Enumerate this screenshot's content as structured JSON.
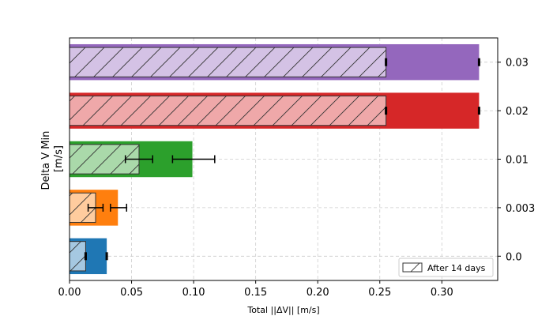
{
  "chart_data": {
    "type": "bar",
    "orientation": "horizontal",
    "title": "",
    "xlabel": "Total ||ΔV|| [m/s]",
    "ylabel_lines": [
      "Delta V Min",
      "[m/s]"
    ],
    "y_axis_side": "right",
    "xlim": [
      0,
      0.345
    ],
    "x_ticks": [
      0.0,
      0.05,
      0.1,
      0.15,
      0.2,
      0.25,
      0.3
    ],
    "x_tick_labels": [
      "0.00",
      "0.05",
      "0.10",
      "0.15",
      "0.20",
      "0.25",
      "0.30"
    ],
    "grid": true,
    "categories": [
      "0.0",
      "0.003",
      "0.01",
      "0.02",
      "0.03"
    ],
    "colors": [
      "#1f77b4",
      "#ff7f0e",
      "#2ca02c",
      "#d62728",
      "#9467bd"
    ],
    "series": [
      {
        "name": "Total",
        "values": [
          0.03,
          0.039,
          0.099,
          0.33,
          0.33
        ],
        "errors": [
          [
            0.0295,
            0.0305
          ],
          [
            0.033,
            0.046
          ],
          [
            0.083,
            0.117
          ],
          [
            0.3295,
            0.3305
          ],
          [
            0.3295,
            0.3305
          ]
        ]
      },
      {
        "name": "After 14 days",
        "hatched": true,
        "values": [
          0.013,
          0.021,
          0.056,
          0.255,
          0.255
        ],
        "errors": [
          [
            0.0125,
            0.0135
          ],
          [
            0.015,
            0.027
          ],
          [
            0.045,
            0.067
          ],
          [
            0.2545,
            0.2555
          ],
          [
            0.2545,
            0.2555
          ]
        ]
      }
    ],
    "legend": {
      "position": "lower-right",
      "entries": [
        "After 14 days"
      ]
    }
  }
}
